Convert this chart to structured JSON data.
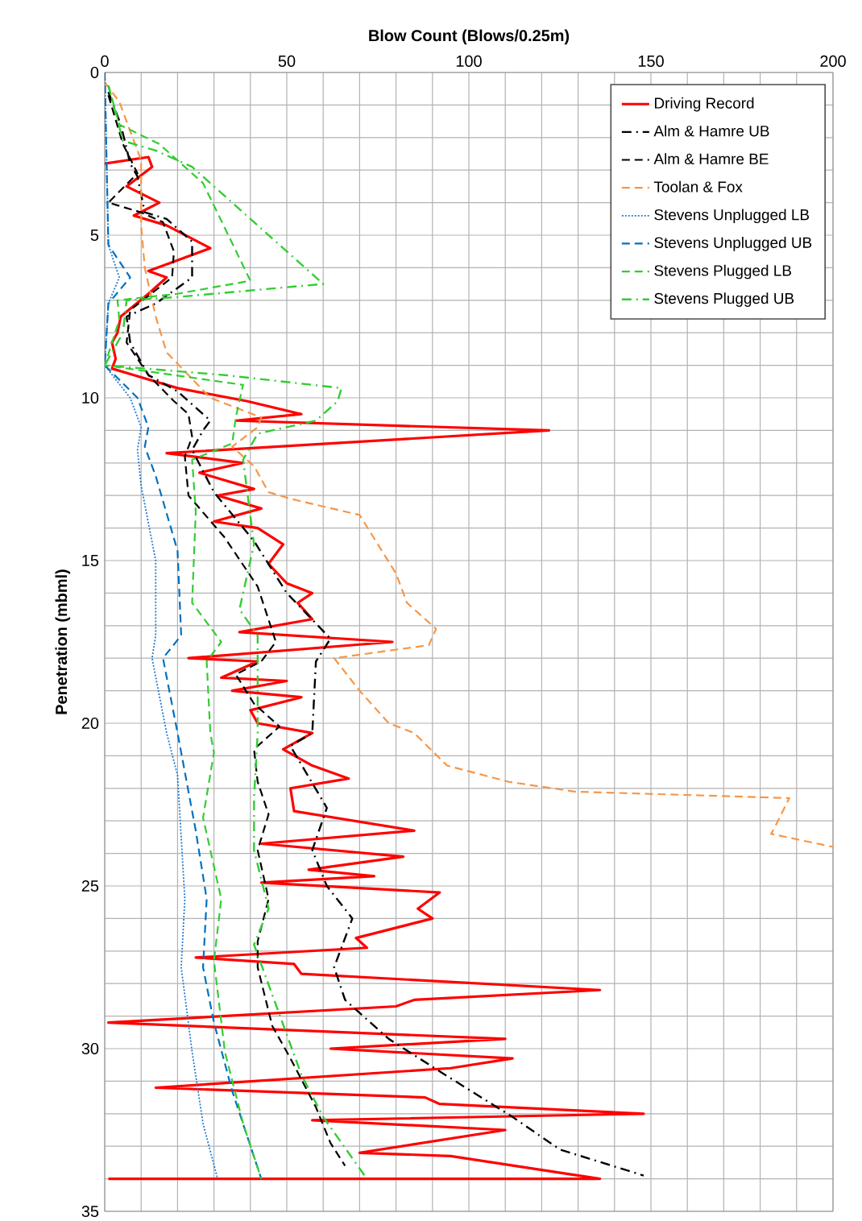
{
  "chart_data": {
    "type": "line",
    "xlabel": "Blow Count (Blows/0.25m)",
    "ylabel": "Penetration (mbml)",
    "xlim": [
      0,
      200
    ],
    "ylim": [
      35,
      0
    ],
    "xticks": [
      0,
      {
        "value": 10,
        "label": null
      },
      {
        "value": 20,
        "label": null
      },
      {
        "value": 30,
        "label": null
      },
      {
        "value": 40,
        "label": null
      },
      50,
      {
        "value": 60,
        "label": null
      },
      {
        "value": 70,
        "label": null
      },
      {
        "value": 80,
        "label": null
      },
      {
        "value": 90,
        "label": null
      },
      100,
      {
        "value": 110,
        "label": null
      },
      {
        "value": 120,
        "label": null
      },
      {
        "value": 130,
        "label": null
      },
      {
        "value": 140,
        "label": null
      },
      150,
      {
        "value": 160,
        "label": null
      },
      {
        "value": 170,
        "label": null
      },
      {
        "value": 180,
        "label": null
      },
      {
        "value": 190,
        "label": null
      },
      200
    ],
    "yticks": [
      0,
      {
        "value": 1,
        "label": null
      },
      {
        "value": 2,
        "label": null
      },
      {
        "value": 3,
        "label": null
      },
      {
        "value": 4,
        "label": null
      },
      5,
      {
        "value": 6,
        "label": null
      },
      {
        "value": 7,
        "label": null
      },
      {
        "value": 8,
        "label": null
      },
      {
        "value": 9,
        "label": null
      },
      10,
      {
        "value": 11,
        "label": null
      },
      {
        "value": 12,
        "label": null
      },
      {
        "value": 13,
        "label": null
      },
      {
        "value": 14,
        "label": null
      },
      15,
      {
        "value": 16,
        "label": null
      },
      {
        "value": 17,
        "label": null
      },
      {
        "value": 18,
        "label": null
      },
      {
        "value": 19,
        "label": null
      },
      20,
      {
        "value": 21,
        "label": null
      },
      {
        "value": 22,
        "label": null
      },
      {
        "value": 23,
        "label": null
      },
      {
        "value": 24,
        "label": null
      },
      25,
      {
        "value": 26,
        "label": null
      },
      {
        "value": 27,
        "label": null
      },
      {
        "value": 28,
        "label": null
      },
      {
        "value": 29,
        "label": null
      },
      30,
      {
        "value": 31,
        "label": null
      },
      {
        "value": 32,
        "label": null
      },
      {
        "value": 33,
        "label": null
      },
      {
        "value": 34,
        "label": null
      },
      35
    ],
    "grid": true,
    "legend": "top right",
    "marker": "none",
    "series": [
      {
        "name": "Driving Record",
        "color": "#ff0000",
        "line_style": "solid",
        "x": [
          0,
          12,
          13,
          6,
          15,
          8,
          17,
          29,
          12,
          17,
          12,
          4.4,
          3.5,
          2,
          3,
          2,
          8,
          20,
          39,
          54,
          36,
          122,
          17,
          38,
          26,
          41,
          31,
          43,
          30,
          42,
          49,
          45,
          50,
          57,
          53,
          57,
          37,
          79,
          23,
          42,
          32,
          50,
          35,
          54,
          40,
          42,
          57,
          49,
          57,
          67,
          51,
          52,
          85,
          43,
          82,
          56,
          74,
          43,
          92,
          86,
          90,
          69,
          72,
          25,
          52,
          54,
          136,
          85,
          80,
          1,
          110,
          62,
          112,
          95,
          14,
          88,
          92,
          148,
          57,
          110,
          70,
          95,
          136,
          1
        ],
        "values": [
          2.8,
          2.6,
          2.9,
          3.5,
          4,
          4.4,
          4.7,
          5.4,
          6.1,
          6.3,
          6.8,
          7.5,
          8,
          8.3,
          8.8,
          9.1,
          9.3,
          9.7,
          10.1,
          10.5,
          10.7,
          11,
          11.7,
          12,
          12.3,
          12.8,
          13,
          13.4,
          13.8,
          14,
          14.5,
          15.1,
          15.7,
          16,
          16.3,
          16.8,
          17.2,
          17.5,
          18,
          18.1,
          18.6,
          18.7,
          19,
          19.2,
          19.6,
          20,
          20.3,
          20.8,
          21.3,
          21.7,
          22,
          22.7,
          23.3,
          23.7,
          24.1,
          24.5,
          24.7,
          24.9,
          25.2,
          25.7,
          26,
          26.6,
          26.9,
          27.2,
          27.4,
          27.7,
          28.2,
          28.5,
          28.7,
          29.2,
          29.7,
          30,
          30.3,
          30.6,
          31.2,
          31.5,
          31.7,
          32,
          32.2,
          32.5,
          33.2,
          33.3,
          34,
          34
        ]
      },
      {
        "name": "Alm & Hamre UB",
        "color": "#000000",
        "line_style": "dashdot",
        "x": [
          1,
          4.4,
          7,
          9,
          11,
          17,
          24,
          24,
          14,
          6,
          7,
          12,
          20,
          29,
          27,
          24,
          30,
          41,
          50,
          62,
          58,
          57,
          51,
          61,
          57,
          61,
          68,
          63,
          66,
          78,
          92,
          112,
          125,
          148
        ],
        "values": [
          0.6,
          1.6,
          2.8,
          3.2,
          4.3,
          4.5,
          5.2,
          6.3,
          7.1,
          7.5,
          8.3,
          9.3,
          9.8,
          10.7,
          11,
          11.6,
          12.9,
          14.4,
          16,
          17.4,
          18.1,
          20.3,
          20.7,
          22.6,
          23.9,
          25,
          26,
          27.5,
          28.5,
          29.7,
          30.7,
          32.1,
          33.1,
          33.9
        ]
      },
      {
        "name": "Alm & Hamre BE",
        "color": "#000000",
        "line_style": "dashed",
        "x": [
          1,
          5,
          9,
          1,
          10,
          16,
          19,
          18.5,
          7,
          6,
          12,
          19,
          23,
          24,
          22,
          23,
          33,
          42,
          47,
          43,
          36,
          41,
          48,
          41,
          42,
          45,
          42,
          45,
          42,
          42,
          46,
          51,
          58,
          62,
          66
        ],
        "values": [
          0.7,
          2.2,
          3.1,
          4,
          4.3,
          4.6,
          5.5,
          6.3,
          7.3,
          8.3,
          9.3,
          10.1,
          10.5,
          11.2,
          11.8,
          13,
          14.3,
          15.8,
          17.5,
          18.1,
          18.5,
          19.4,
          20.1,
          20.8,
          21.8,
          22.8,
          23.9,
          25.4,
          26.7,
          27.5,
          29.3,
          30.3,
          31.8,
          32.9,
          33.6
        ]
      },
      {
        "name": "Toolan & Fox",
        "color": "#f79646",
        "line_style": "dashed",
        "x": [
          0,
          4,
          10,
          10,
          11,
          14,
          17,
          29,
          43,
          42,
          35,
          41,
          45,
          51,
          70,
          80,
          83,
          91,
          89,
          63,
          70,
          78,
          85,
          94,
          111,
          129,
          188,
          184,
          183,
          200
        ],
        "values": [
          0.3,
          0.9,
          2.7,
          4.7,
          6,
          7.5,
          8.6,
          10,
          10.6,
          10.9,
          11.5,
          12.1,
          12.9,
          13.1,
          13.6,
          15.4,
          16.3,
          17.1,
          17.6,
          18,
          19,
          20,
          20.3,
          21.3,
          21.8,
          22.1,
          22.3,
          23.2,
          23.4,
          23.8
        ]
      },
      {
        "name": "Stevens Unplugged LB",
        "color": "#1f7ad0",
        "line_style": "dotted",
        "x": [
          0,
          1,
          4,
          1,
          0,
          7,
          10,
          9,
          10,
          14,
          14,
          13,
          17,
          20,
          22,
          21,
          24,
          27,
          31
        ],
        "values": [
          0,
          5.3,
          6.3,
          7.1,
          9,
          10,
          10.9,
          11.6,
          12.7,
          15,
          17.3,
          18,
          20.3,
          21.6,
          25.4,
          27.5,
          30.1,
          32.3,
          34
        ]
      },
      {
        "name": "Stevens Unplugged UB",
        "color": "#0070c0",
        "line_style": "dashed",
        "x": [
          0,
          1,
          7,
          1,
          0,
          9,
          12,
          11,
          14,
          20,
          21,
          16,
          20,
          25,
          28,
          27,
          30,
          35,
          43
        ],
        "values": [
          0,
          5.3,
          6.3,
          7.1,
          9,
          10,
          10.9,
          11.5,
          12.4,
          14.7,
          17.3,
          18,
          20.3,
          23.3,
          25.4,
          27.5,
          29.2,
          31.3,
          34
        ]
      },
      {
        "name": "Stevens Plugged LB",
        "color": "#33cc33",
        "line_style": "dashed",
        "x": [
          1,
          4,
          15,
          27,
          40,
          20,
          3.5,
          4,
          0,
          38,
          36,
          35,
          24,
          25,
          24,
          32,
          28,
          29,
          30,
          27,
          32,
          30,
          33,
          38,
          43
        ],
        "values": [
          0.4,
          1.6,
          2.2,
          3.4,
          6.4,
          6.8,
          7,
          7.6,
          9,
          9.6,
          10.6,
          11.4,
          11.9,
          13.5,
          16.3,
          17.5,
          18.1,
          20.3,
          20.9,
          22.9,
          25.4,
          27.3,
          30.1,
          32.3,
          34
        ]
      },
      {
        "name": "Stevens Plugged UB",
        "color": "#33cc33",
        "line_style": "dashdot",
        "x": [
          1,
          5,
          14,
          24,
          50,
          60,
          20,
          6,
          5,
          0,
          33,
          65,
          64,
          58,
          42,
          38,
          41,
          37,
          42,
          42,
          41,
          41,
          45,
          41,
          54,
          60,
          72
        ],
        "values": [
          0.4,
          2.1,
          2.4,
          2.9,
          5.5,
          6.5,
          6.9,
          7,
          8,
          9,
          9.3,
          9.7,
          10.1,
          10.7,
          11.1,
          11.9,
          14.5,
          16.5,
          17.3,
          20.3,
          22.3,
          23.9,
          25.7,
          26.8,
          30.8,
          32.1,
          34
        ]
      }
    ]
  }
}
